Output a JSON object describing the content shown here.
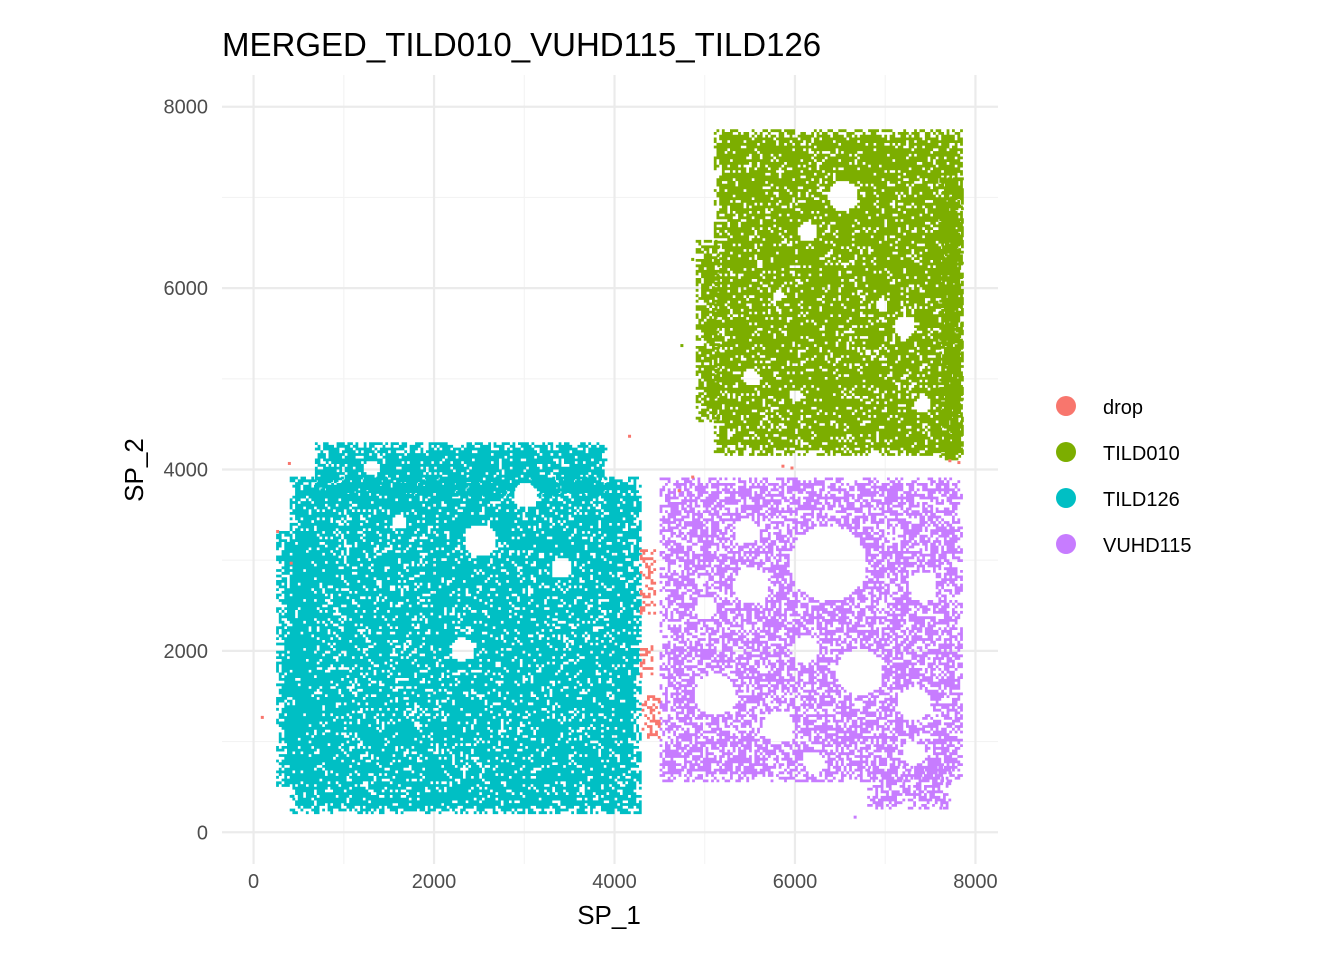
{
  "chart_data": {
    "type": "scatter",
    "title": "MERGED_TILD010_VUHD115_TILD126",
    "xlabel": "SP_1",
    "ylabel": "SP_2",
    "xlim": [
      -350,
      8250
    ],
    "ylim": [
      -350,
      8350
    ],
    "x_ticks": [
      0,
      2000,
      4000,
      6000,
      8000
    ],
    "y_ticks": [
      0,
      2000,
      4000,
      6000,
      8000
    ],
    "x_tick_labels": [
      "0",
      "2000",
      "4000",
      "6000",
      "8000"
    ],
    "y_tick_labels": [
      "0",
      "2000",
      "4000",
      "6000",
      "8000"
    ],
    "grid": true,
    "legend_position": "right",
    "series": [
      {
        "name": "drop",
        "color": "#F8766D",
        "regions": [
          {
            "x": [
              4280,
              4440
            ],
            "y": [
              2400,
              3100
            ]
          },
          {
            "x": [
              4280,
              4420
            ],
            "y": [
              1700,
              2050
            ]
          },
          {
            "x": [
              4300,
              4480
            ],
            "y": [
              1000,
              1500
            ]
          }
        ],
        "points": [
          {
            "x": 380,
            "y": 4050
          },
          {
            "x": 250,
            "y": 3300
          },
          {
            "x": 80,
            "y": 1250
          },
          {
            "x": 400,
            "y": 2950
          },
          {
            "x": 4150,
            "y": 4350
          },
          {
            "x": 5850,
            "y": 4020
          },
          {
            "x": 5950,
            "y": 4000
          },
          {
            "x": 7800,
            "y": 4060
          },
          {
            "x": 7700,
            "y": 4080
          },
          {
            "x": 4850,
            "y": 3900
          },
          {
            "x": 4700,
            "y": 3750
          }
        ]
      },
      {
        "name": "TILD010",
        "color": "#7CAE00",
        "regions": [
          {
            "x": [
              4900,
              5150
            ],
            "y": [
              4520,
              6500
            ]
          },
          {
            "x": [
              5100,
              7850
            ],
            "y": [
              4150,
              7720
            ]
          },
          {
            "x": [
              7600,
              7850
            ],
            "y": [
              4100,
              7200
            ]
          }
        ],
        "holes": [
          {
            "x": 6520,
            "y": 7000,
            "r": 170
          },
          {
            "x": 6130,
            "y": 6600,
            "r": 110
          },
          {
            "x": 7200,
            "y": 5550,
            "r": 120
          },
          {
            "x": 6950,
            "y": 5800,
            "r": 70
          },
          {
            "x": 5500,
            "y": 5000,
            "r": 90
          },
          {
            "x": 5800,
            "y": 5900,
            "r": 60
          },
          {
            "x": 7400,
            "y": 4700,
            "r": 90
          },
          {
            "x": 6000,
            "y": 4800,
            "r": 70
          }
        ],
        "points": [
          {
            "x": 4850,
            "y": 6300
          },
          {
            "x": 4730,
            "y": 5350
          }
        ]
      },
      {
        "name": "TILD126",
        "color": "#00BFC4",
        "regions": [
          {
            "x": [
              400,
              4270
            ],
            "y": [
              200,
              3900
            ]
          },
          {
            "x": [
              680,
              3900
            ],
            "y": [
              3700,
              4280
            ]
          },
          {
            "x": [
              250,
              650
            ],
            "y": [
              500,
              3300
            ]
          }
        ],
        "holes": [
          {
            "x": 2500,
            "y": 3200,
            "r": 180
          },
          {
            "x": 3400,
            "y": 2900,
            "r": 120
          },
          {
            "x": 3000,
            "y": 3700,
            "r": 140
          },
          {
            "x": 2300,
            "y": 2000,
            "r": 130
          },
          {
            "x": 1300,
            "y": 4000,
            "r": 90
          },
          {
            "x": 1600,
            "y": 3400,
            "r": 80
          }
        ],
        "points": [
          {
            "x": 420,
            "y": 380
          }
        ]
      },
      {
        "name": "VUHD115",
        "color": "#C77CFF",
        "regions": [
          {
            "x": [
              4500,
              7850
            ],
            "y": [
              550,
              3900
            ]
          },
          {
            "x": [
              6800,
              7700
            ],
            "y": [
              250,
              700
            ]
          }
        ],
        "holes": [
          {
            "x": 6350,
            "y": 2950,
            "r": 420
          },
          {
            "x": 5500,
            "y": 2700,
            "r": 200
          },
          {
            "x": 5100,
            "y": 1500,
            "r": 230
          },
          {
            "x": 6700,
            "y": 1750,
            "r": 260
          },
          {
            "x": 5800,
            "y": 1150,
            "r": 180
          },
          {
            "x": 7300,
            "y": 1400,
            "r": 180
          },
          {
            "x": 5450,
            "y": 3300,
            "r": 140
          },
          {
            "x": 7400,
            "y": 2700,
            "r": 160
          },
          {
            "x": 6100,
            "y": 2000,
            "r": 150
          },
          {
            "x": 5000,
            "y": 2450,
            "r": 120
          },
          {
            "x": 7300,
            "y": 850,
            "r": 130
          },
          {
            "x": 6200,
            "y": 750,
            "r": 120
          }
        ],
        "points": [
          {
            "x": 6650,
            "y": 150
          },
          {
            "x": 7600,
            "y": 250
          }
        ]
      }
    ]
  }
}
